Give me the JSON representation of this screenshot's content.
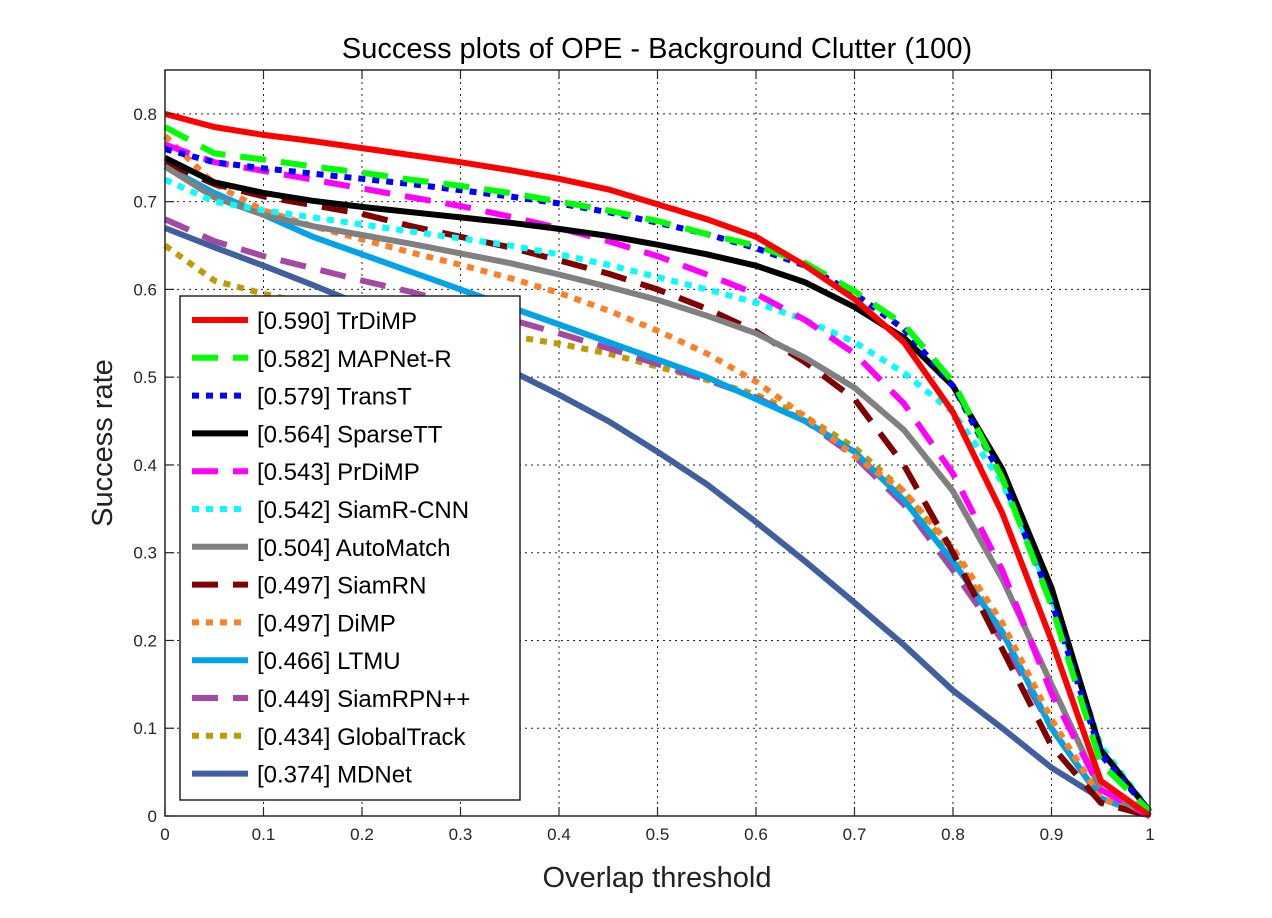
{
  "chart_data": {
    "type": "line",
    "title": "Success plots of OPE - Background Clutter (100)",
    "xlabel": "Overlap threshold",
    "ylabel": "Success rate",
    "xlim": [
      0,
      1
    ],
    "ylim": [
      0,
      0.85
    ],
    "xticks": [
      "0",
      "0.1",
      "0.2",
      "0.3",
      "0.4",
      "0.5",
      "0.6",
      "0.7",
      "0.8",
      "0.9",
      "1"
    ],
    "yticks": [
      "0",
      "0.1",
      "0.2",
      "0.3",
      "0.4",
      "0.5",
      "0.6",
      "0.7",
      "0.8"
    ],
    "grid": true,
    "legend_position": "left",
    "x": [
      0,
      0.05,
      0.1,
      0.15,
      0.2,
      0.25,
      0.3,
      0.35,
      0.4,
      0.45,
      0.5,
      0.55,
      0.6,
      0.65,
      0.7,
      0.75,
      0.8,
      0.85,
      0.9,
      0.95,
      1
    ],
    "series": [
      {
        "name": "[0.590] TrDiMP",
        "color": "#ff0000",
        "dash": "solid",
        "values": [
          0.8,
          0.785,
          0.776,
          0.769,
          0.761,
          0.753,
          0.745,
          0.736,
          0.726,
          0.714,
          0.697,
          0.68,
          0.66,
          0.627,
          0.589,
          0.54,
          0.46,
          0.345,
          0.2,
          0.04,
          0.0
        ]
      },
      {
        "name": "[0.582] MAPNet-R",
        "color": "#00ff00",
        "dash": "dash",
        "values": [
          0.785,
          0.755,
          0.748,
          0.74,
          0.733,
          0.725,
          0.718,
          0.71,
          0.7,
          0.69,
          0.678,
          0.663,
          0.65,
          0.63,
          0.598,
          0.56,
          0.495,
          0.385,
          0.24,
          0.06,
          0.005
        ]
      },
      {
        "name": "[0.579] TransT",
        "color": "#0000ff",
        "dash": "dot",
        "values": [
          0.76,
          0.745,
          0.738,
          0.732,
          0.726,
          0.72,
          0.713,
          0.706,
          0.698,
          0.688,
          0.676,
          0.663,
          0.647,
          0.627,
          0.595,
          0.555,
          0.49,
          0.385,
          0.245,
          0.07,
          0.005
        ]
      },
      {
        "name": "[0.564] SparseTT",
        "color": "#000000",
        "dash": "solid",
        "values": [
          0.75,
          0.722,
          0.71,
          0.701,
          0.694,
          0.688,
          0.682,
          0.676,
          0.669,
          0.661,
          0.651,
          0.64,
          0.627,
          0.608,
          0.58,
          0.545,
          0.49,
          0.395,
          0.26,
          0.075,
          0.005
        ]
      },
      {
        "name": "[0.543] PrDiMP",
        "color": "#ff00ff",
        "dash": "dash",
        "values": [
          0.765,
          0.745,
          0.735,
          0.725,
          0.715,
          0.705,
          0.695,
          0.683,
          0.67,
          0.655,
          0.638,
          0.617,
          0.595,
          0.565,
          0.527,
          0.47,
          0.39,
          0.28,
          0.14,
          0.03,
          0.0
        ]
      },
      {
        "name": "[0.542] SiamR-CNN",
        "color": "#00ffff",
        "dash": "dot",
        "values": [
          0.725,
          0.7,
          0.69,
          0.682,
          0.674,
          0.666,
          0.658,
          0.65,
          0.64,
          0.628,
          0.614,
          0.6,
          0.585,
          0.565,
          0.54,
          0.505,
          0.46,
          0.38,
          0.25,
          0.08,
          0.005
        ]
      },
      {
        "name": "[0.504] AutoMatch",
        "color": "#808080",
        "dash": "solid",
        "values": [
          0.74,
          0.705,
          0.685,
          0.672,
          0.662,
          0.652,
          0.641,
          0.63,
          0.617,
          0.603,
          0.588,
          0.57,
          0.55,
          0.522,
          0.488,
          0.44,
          0.37,
          0.27,
          0.15,
          0.03,
          0.0
        ]
      },
      {
        "name": "[0.497] SiamRN",
        "color": "#800000",
        "dash": "dash",
        "values": [
          0.745,
          0.72,
          0.706,
          0.696,
          0.686,
          0.672,
          0.66,
          0.648,
          0.633,
          0.618,
          0.6,
          0.578,
          0.552,
          0.517,
          0.475,
          0.4,
          0.3,
          0.19,
          0.08,
          0.015,
          0.0
        ]
      },
      {
        "name": "[0.497] DiMP",
        "color": "#ff7f27",
        "dash": "dot",
        "values": [
          0.775,
          0.72,
          0.69,
          0.672,
          0.657,
          0.642,
          0.628,
          0.613,
          0.596,
          0.576,
          0.553,
          0.527,
          0.495,
          0.455,
          0.41,
          0.37,
          0.305,
          0.22,
          0.11,
          0.02,
          0.0
        ]
      },
      {
        "name": "[0.466] LTMU",
        "color": "#00a2e8",
        "dash": "solid",
        "values": [
          0.74,
          0.71,
          0.685,
          0.66,
          0.64,
          0.62,
          0.6,
          0.58,
          0.56,
          0.54,
          0.52,
          0.5,
          0.475,
          0.45,
          0.415,
          0.36,
          0.29,
          0.21,
          0.1,
          0.02,
          0.0
        ]
      },
      {
        "name": "[0.449] SiamRPN++",
        "color": "#a349a4",
        "dash": "dash",
        "values": [
          0.68,
          0.655,
          0.638,
          0.624,
          0.61,
          0.597,
          0.582,
          0.566,
          0.55,
          0.533,
          0.515,
          0.497,
          0.477,
          0.45,
          0.41,
          0.355,
          0.28,
          0.2,
          0.1,
          0.02,
          0.0
        ]
      },
      {
        "name": "[0.434] GlobalTrack",
        "color": "#c29a00",
        "dash": "dot",
        "values": [
          0.65,
          0.61,
          0.595,
          0.583,
          0.573,
          0.563,
          0.555,
          0.547,
          0.538,
          0.527,
          0.512,
          0.497,
          0.48,
          0.455,
          0.42,
          0.37,
          0.3,
          0.21,
          0.1,
          0.02,
          0.0
        ]
      },
      {
        "name": "[0.374] MDNet",
        "color": "#3f5f9f",
        "dash": "solid",
        "values": [
          0.67,
          0.648,
          0.627,
          0.605,
          0.582,
          0.56,
          0.535,
          0.508,
          0.48,
          0.45,
          0.415,
          0.378,
          0.335,
          0.29,
          0.243,
          0.195,
          0.143,
          0.1,
          0.055,
          0.02,
          0.0
        ]
      }
    ]
  }
}
